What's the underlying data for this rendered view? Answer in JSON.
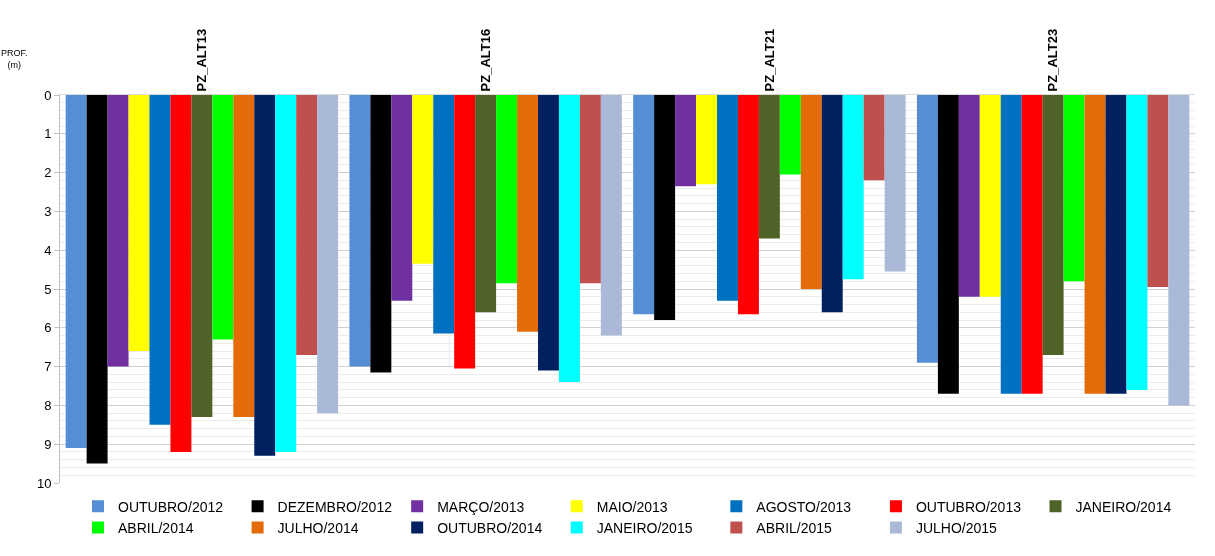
{
  "chart_data": {
    "type": "bar",
    "ylabel": "PROF.\n(m)",
    "categories": [
      "PZ_ALT13",
      "PZ_ALT16",
      "PZ_ALT21",
      "PZ_ALT23"
    ],
    "ylim": [
      10,
      0
    ],
    "yticks": [
      0,
      1,
      2,
      3,
      4,
      5,
      6,
      7,
      8,
      9,
      10
    ],
    "grid": "y",
    "legend": "bottom",
    "series": [
      {
        "name": "OUTUBRO/2012",
        "color": "#558ed5",
        "values": [
          9.1,
          7.0,
          5.65,
          6.9
        ]
      },
      {
        "name": "DEZEMBRO/2012",
        "color": "#000000",
        "values": [
          9.5,
          7.15,
          5.8,
          7.7
        ]
      },
      {
        "name": "MARÇO/2013",
        "color": "#7030a0",
        "values": [
          7.0,
          5.3,
          2.35,
          5.2
        ]
      },
      {
        "name": "MAIO/2013",
        "color": "#ffff00",
        "values": [
          6.6,
          4.35,
          2.3,
          5.2
        ]
      },
      {
        "name": "AGOSTO/2013",
        "color": "#0070c0",
        "values": [
          8.5,
          6.15,
          5.3,
          7.7
        ]
      },
      {
        "name": "OUTUBRO/2013",
        "color": "#ff0000",
        "values": [
          9.2,
          7.05,
          5.65,
          7.7
        ]
      },
      {
        "name": "JANEIRO/2014",
        "color": "#4f6228",
        "values": [
          8.3,
          5.6,
          3.7,
          6.7
        ]
      },
      {
        "name": "ABRIL/2014",
        "color": "#00ff00",
        "values": [
          6.3,
          4.85,
          2.05,
          4.8
        ]
      },
      {
        "name": "JULHO/2014",
        "color": "#e36c09",
        "values": [
          8.3,
          6.1,
          5.0,
          7.7
        ]
      },
      {
        "name": "OUTUBRO/2014",
        "color": "#002060",
        "values": [
          9.3,
          7.1,
          5.6,
          7.7
        ]
      },
      {
        "name": "JANEIRO/2015",
        "color": "#00ffff",
        "values": [
          9.2,
          7.4,
          4.75,
          7.6
        ]
      },
      {
        "name": "ABRIL/2015",
        "color": "#c0504d",
        "values": [
          6.7,
          4.85,
          2.2,
          4.95
        ]
      },
      {
        "name": "JULHO/2015",
        "color": "#a9b9d7",
        "values": [
          8.2,
          6.2,
          4.55,
          8.0
        ]
      }
    ]
  }
}
